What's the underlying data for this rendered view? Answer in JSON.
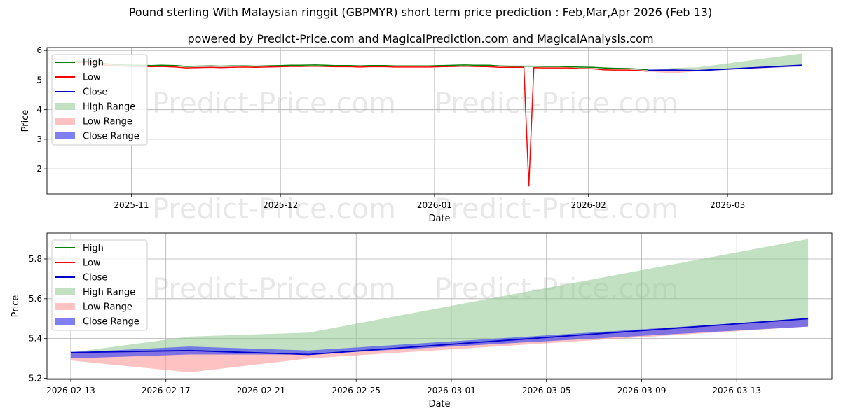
{
  "title": "Pound sterling With Malaysian ringgit (GBPMYR) short term price prediction : Feb,Mar,Apr 2026 (Feb 13)",
  "subtitle": "powered by Predict-Price.com and MagicalPrediction.com and MagicalAnalysis.com",
  "watermark": "Predict-Price.com",
  "colors": {
    "high": "#008000",
    "low": "#ff0000",
    "close": "#0000cc",
    "high_range": "#8fc98f",
    "low_range": "#ff9999",
    "close_range": "#5555ee",
    "grid": "#b0b0b0"
  },
  "legend": [
    "High",
    "Low",
    "Close",
    "High Range",
    "Low Range",
    "Close Range"
  ],
  "chart_data": [
    {
      "type": "line",
      "xlabel": "Date",
      "ylabel": "Price",
      "ylim": [
        1.15,
        6.1
      ],
      "yticks": [
        2,
        3,
        4,
        5,
        6
      ],
      "xlim": [
        "2025-10-15",
        "2026-03-22"
      ],
      "xticks": [
        "2025-11",
        "2025-12",
        "2026-01",
        "2026-02",
        "2026-03"
      ],
      "grid": true,
      "legend_position": "top-left",
      "history": {
        "dates": [
          "2025-10-20",
          "2025-10-22",
          "2025-10-24",
          "2025-10-27",
          "2025-10-29",
          "2025-10-31",
          "2025-11-03",
          "2025-11-05",
          "2025-11-07",
          "2025-11-10",
          "2025-11-12",
          "2025-11-14",
          "2025-11-17",
          "2025-11-19",
          "2025-11-21",
          "2025-11-24",
          "2025-11-26",
          "2025-11-28",
          "2025-12-01",
          "2025-12-03",
          "2025-12-05",
          "2025-12-08",
          "2025-12-10",
          "2025-12-12",
          "2025-12-15",
          "2025-12-17",
          "2025-12-19",
          "2025-12-22",
          "2025-12-24",
          "2025-12-26",
          "2025-12-29",
          "2025-12-31",
          "2026-01-02",
          "2026-01-05",
          "2026-01-07",
          "2026-01-09",
          "2026-01-12",
          "2026-01-14",
          "2026-01-16",
          "2026-01-19",
          "2026-01-20",
          "2026-01-21",
          "2026-01-23",
          "2026-01-26",
          "2026-01-28",
          "2026-01-30",
          "2026-02-02",
          "2026-02-04",
          "2026-02-06",
          "2026-02-09",
          "2026-02-11",
          "2026-02-13"
        ],
        "high": [
          5.62,
          5.64,
          5.62,
          5.55,
          5.52,
          5.51,
          5.5,
          5.49,
          5.5,
          5.49,
          5.46,
          5.47,
          5.48,
          5.47,
          5.48,
          5.48,
          5.47,
          5.48,
          5.49,
          5.5,
          5.5,
          5.51,
          5.5,
          5.49,
          5.49,
          5.48,
          5.49,
          5.49,
          5.48,
          5.48,
          5.48,
          5.48,
          5.49,
          5.5,
          5.51,
          5.5,
          5.5,
          5.48,
          5.47,
          5.47,
          5.47,
          5.47,
          5.46,
          5.46,
          5.45,
          5.44,
          5.43,
          5.41,
          5.4,
          5.39,
          5.37,
          5.35
        ],
        "low": [
          5.58,
          5.6,
          5.58,
          5.5,
          5.48,
          5.47,
          5.46,
          5.45,
          5.46,
          5.44,
          5.41,
          5.42,
          5.43,
          5.42,
          5.43,
          5.44,
          5.43,
          5.44,
          5.45,
          5.46,
          5.46,
          5.47,
          5.46,
          5.45,
          5.45,
          5.44,
          5.45,
          5.45,
          5.44,
          5.44,
          5.44,
          5.44,
          5.45,
          5.46,
          5.47,
          5.46,
          5.45,
          5.43,
          5.43,
          5.43,
          1.42,
          5.42,
          5.41,
          5.41,
          5.41,
          5.39,
          5.38,
          5.35,
          5.34,
          5.34,
          5.32,
          5.3
        ]
      },
      "prediction": {
        "dates": [
          "2026-02-13",
          "2026-02-18",
          "2026-02-23",
          "2026-03-16"
        ],
        "close": [
          5.33,
          5.34,
          5.32,
          5.5
        ],
        "high_range": [
          5.33,
          5.41,
          5.43,
          5.9
        ],
        "low_range": [
          5.29,
          5.23,
          5.3,
          5.46
        ],
        "close_range_top": [
          5.33,
          5.36,
          5.34,
          5.5
        ],
        "close_range_bottom": [
          5.3,
          5.32,
          5.32,
          5.46
        ]
      }
    },
    {
      "type": "line",
      "xlabel": "Date",
      "ylabel": "Price",
      "ylim": [
        5.195,
        5.93
      ],
      "yticks": [
        5.2,
        5.4,
        5.6,
        5.8
      ],
      "xlim": [
        "2026-02-12",
        "2026-03-17"
      ],
      "xticks": [
        "2026-02-13",
        "2026-02-17",
        "2026-02-21",
        "2026-02-25",
        "2026-03-01",
        "2026-03-05",
        "2026-03-09",
        "2026-03-13"
      ],
      "grid": true,
      "legend_position": "top-left",
      "prediction": {
        "dates": [
          "2026-02-13",
          "2026-02-18",
          "2026-02-23",
          "2026-03-16"
        ],
        "close": [
          5.33,
          5.34,
          5.32,
          5.5
        ],
        "high_range": [
          5.33,
          5.41,
          5.43,
          5.9
        ],
        "low_range": [
          5.29,
          5.23,
          5.3,
          5.46
        ],
        "close_range_top": [
          5.33,
          5.36,
          5.34,
          5.5
        ],
        "close_range_bottom": [
          5.3,
          5.32,
          5.32,
          5.46
        ]
      }
    }
  ]
}
